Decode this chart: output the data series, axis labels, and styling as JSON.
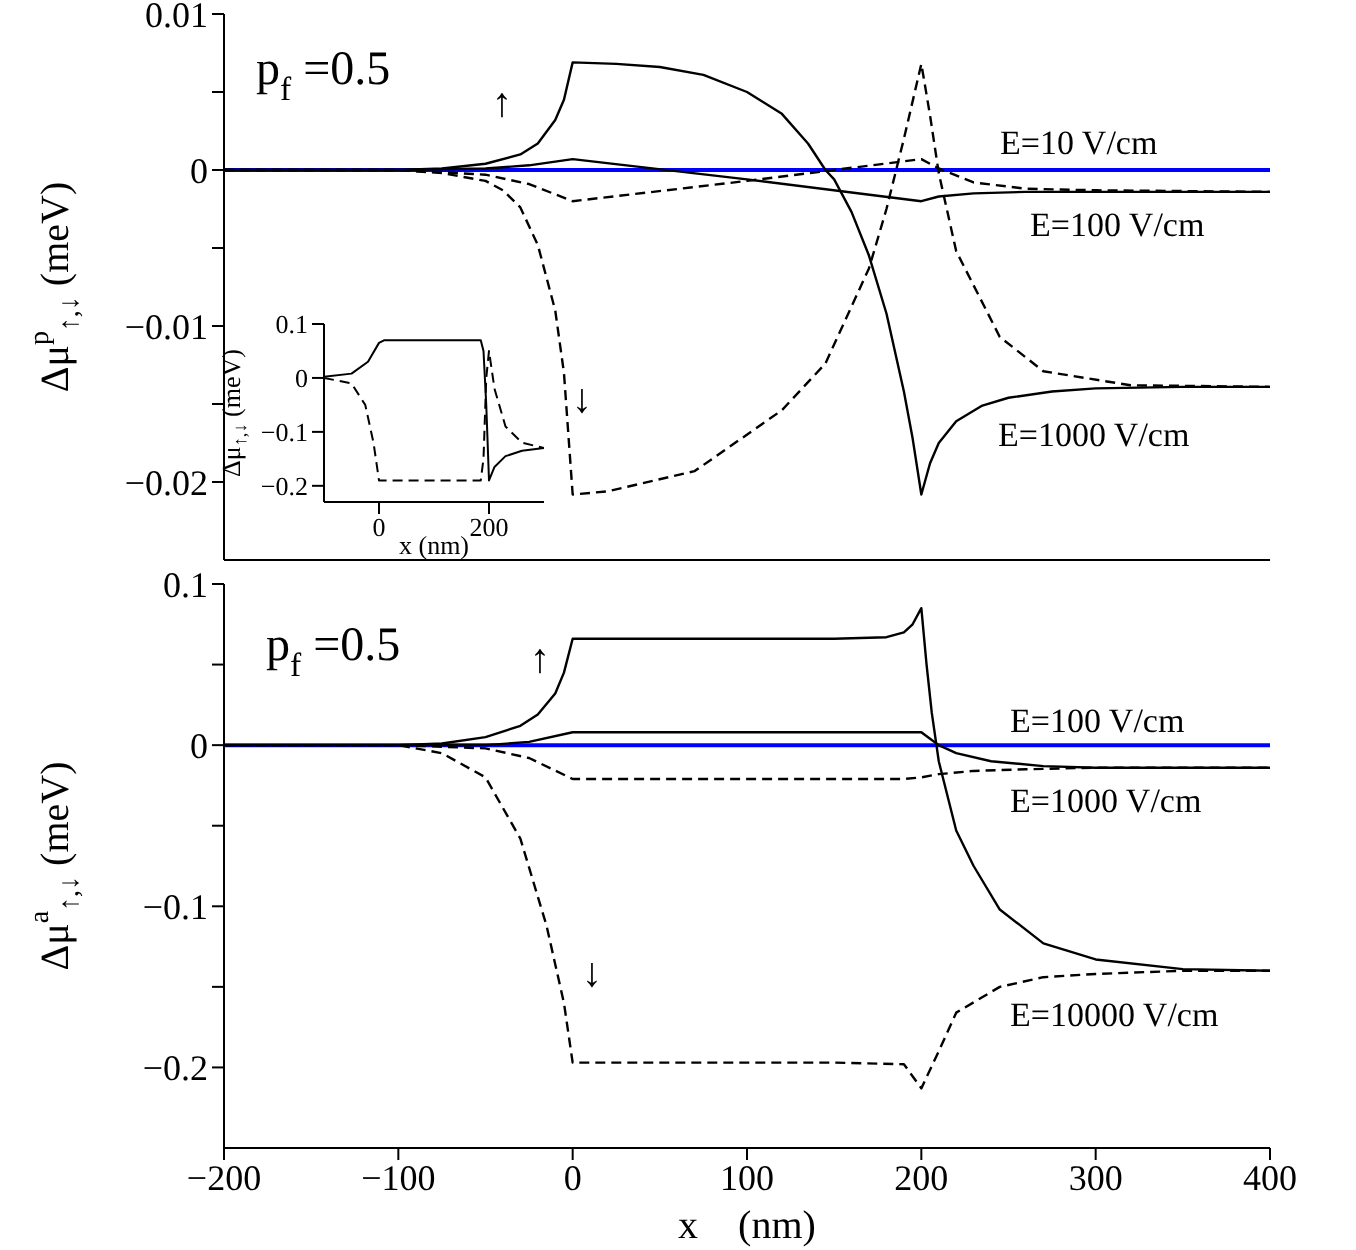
{
  "chart_data": [
    {
      "type": "line",
      "ylabel": "Δμ$^{p}$$_{↑,↓}$ (meV)",
      "xlim": [
        -200,
        400
      ],
      "xticks": [
        -200,
        -100,
        0,
        100,
        200,
        300,
        400
      ],
      "ylim": [
        -0.025,
        0.01
      ],
      "yticks": [
        0.01,
        {
          "value": 0.005,
          "label": null
        },
        0,
        {
          "value": -0.005,
          "label": null
        },
        {
          "value": -0.01,
          "label": "−0.01"
        },
        {
          "value": -0.015,
          "label": null
        },
        {
          "value": -0.02,
          "label": "−0.02"
        }
      ],
      "tick_labels": "y",
      "ref_lines": [
        {
          "axis": "y",
          "value": 0,
          "color": "#0000ff"
        }
      ],
      "annotations": [
        "p$_{f}$ =0.5",
        "↑",
        "↓",
        "E=10 V/cm",
        "E=100 V/cm",
        "E=1000 V/cm"
      ],
      "series": [
        {
          "color": "#000000",
          "line_style": "solid",
          "x": [
            -200,
            -100,
            -75,
            -50,
            -30,
            -20,
            -10,
            -5,
            0,
            25,
            50,
            75,
            100,
            120,
            135,
            145,
            150,
            160,
            170,
            180,
            190,
            195,
            200,
            205,
            210,
            220,
            235,
            250,
            275,
            300,
            350,
            400
          ],
          "values": [
            0,
            0,
            0.0001,
            0.0004,
            0.001,
            0.0017,
            0.0032,
            0.0045,
            0.0069,
            0.0068,
            0.0066,
            0.0061,
            0.005,
            0.0036,
            0.0017,
            0,
            -0.0006,
            -0.0027,
            -0.0055,
            -0.0092,
            -0.0142,
            -0.0172,
            -0.0208,
            -0.0188,
            -0.0175,
            -0.0161,
            -0.0151,
            -0.0146,
            -0.0142,
            -0.014,
            -0.0139,
            -0.0139
          ]
        },
        {
          "color": "#000000",
          "line_style": "dashed",
          "x": [
            -200,
            -100,
            -75,
            -50,
            -40,
            -30,
            -20,
            -10,
            -5,
            0,
            20,
            70,
            120,
            145,
            170,
            180,
            190,
            195,
            200,
            205,
            210,
            220,
            245,
            270,
            320,
            400
          ],
          "values": [
            0,
            0,
            -0.0002,
            -0.0007,
            -0.0013,
            -0.0024,
            -0.0048,
            -0.009,
            -0.013,
            -0.0208,
            -0.0206,
            -0.0193,
            -0.0154,
            -0.0124,
            -0.0063,
            -0.0025,
            0.002,
            0.0044,
            0.0068,
            0.0035,
            -0.0002,
            -0.0052,
            -0.0107,
            -0.0129,
            -0.0138,
            -0.0139
          ]
        },
        {
          "color": "#000000",
          "line_style": "solid",
          "x": [
            -200,
            -100,
            -50,
            -25,
            0,
            100,
            200,
            210,
            230,
            260,
            300,
            400
          ],
          "values": [
            0,
            0,
            0.0001,
            0.0003,
            0.0007,
            -0.0006,
            -0.002,
            -0.0017,
            -0.0015,
            -0.0014,
            -0.0014,
            -0.0014
          ]
        },
        {
          "color": "#000000",
          "line_style": "dashed",
          "x": [
            -200,
            -100,
            -50,
            -25,
            0,
            100,
            200,
            210,
            230,
            260,
            300,
            400
          ],
          "values": [
            0,
            0,
            -0.0003,
            -0.0009,
            -0.002,
            -0.0007,
            0.0007,
            0.0001,
            -0.0008,
            -0.0012,
            -0.0013,
            -0.0014
          ]
        }
      ]
    },
    {
      "type": "line",
      "xlabel": "x (nm)",
      "ylabel": "Δμ$_{↑,↓}$ (meV)",
      "xlim": [
        -100,
        300
      ],
      "xticks": [
        0,
        200
      ],
      "ylim": [
        -0.23,
        0.1
      ],
      "yticks": [
        0.1,
        0,
        {
          "value": -0.1,
          "label": "−0.1"
        },
        {
          "value": -0.2,
          "label": "−0.2"
        }
      ],
      "series": [
        {
          "color": "#000000",
          "line_style": "solid",
          "x": [
            -100,
            -50,
            -20,
            0,
            10,
            100,
            185,
            190,
            195,
            200,
            210,
            230,
            260,
            300
          ],
          "values": [
            0.002,
            0.008,
            0.03,
            0.065,
            0.07,
            0.07,
            0.07,
            0.05,
            -0.05,
            -0.19,
            -0.165,
            -0.145,
            -0.135,
            -0.13
          ]
        },
        {
          "color": "#000000",
          "line_style": "dashed",
          "x": [
            -100,
            -50,
            -25,
            -10,
            0,
            100,
            185,
            190,
            195,
            200,
            210,
            230,
            260,
            300
          ],
          "values": [
            0,
            -0.01,
            -0.05,
            -0.12,
            -0.19,
            -0.19,
            -0.19,
            -0.15,
            0,
            0.05,
            -0.02,
            -0.09,
            -0.12,
            -0.13
          ]
        }
      ]
    },
    {
      "type": "line",
      "xlabel": "x    (nm)",
      "ylabel": "Δμ$^{a}$$_{↑,↓}$ (meV)",
      "xlim": [
        -200,
        400
      ],
      "xticks": [
        {
          "value": -200,
          "label": "−200"
        },
        {
          "value": -100,
          "label": "−100"
        },
        0,
        100,
        200,
        300,
        400
      ],
      "ylim": [
        -0.25,
        0.1
      ],
      "yticks": [
        0.1,
        {
          "value": 0.05,
          "label": null
        },
        0,
        {
          "value": -0.05,
          "label": null
        },
        {
          "value": -0.1,
          "label": "−0.1"
        },
        {
          "value": -0.15,
          "label": null
        },
        {
          "value": -0.2,
          "label": "−0.2"
        }
      ],
      "ref_lines": [
        {
          "axis": "y",
          "value": 0,
          "color": "#0000ff"
        }
      ],
      "annotations": [
        "p$_{f}$ =0.5",
        "↑",
        "↓",
        "E=100 V/cm",
        "E=1000 V/cm",
        "E=10000 V/cm"
      ],
      "series": [
        {
          "color": "#000000",
          "line_style": "solid",
          "x": [
            -200,
            -100,
            -75,
            -50,
            -30,
            -20,
            -10,
            -5,
            0,
            50,
            100,
            150,
            180,
            190,
            195,
            200,
            203,
            206,
            210,
            220,
            230,
            245,
            270,
            300,
            350,
            400
          ],
          "values": [
            0,
            0,
            0.001,
            0.005,
            0.012,
            0.019,
            0.032,
            0.045,
            0.066,
            0.066,
            0.066,
            0.066,
            0.067,
            0.07,
            0.075,
            0.085,
            0.05,
            0.02,
            -0.01,
            -0.053,
            -0.075,
            -0.102,
            -0.123,
            -0.133,
            -0.139,
            -0.14
          ]
        },
        {
          "color": "#000000",
          "line_style": "dashed",
          "x": [
            -200,
            -100,
            -75,
            -50,
            -30,
            -15,
            -5,
            0,
            50,
            100,
            150,
            190,
            200,
            210,
            220,
            245,
            270,
            300,
            350,
            400
          ],
          "values": [
            0,
            0,
            -0.005,
            -0.02,
            -0.058,
            -0.112,
            -0.16,
            -0.197,
            -0.197,
            -0.197,
            -0.197,
            -0.198,
            -0.213,
            -0.19,
            -0.166,
            -0.15,
            -0.144,
            -0.142,
            -0.14,
            -0.14
          ]
        },
        {
          "color": "#000000",
          "line_style": "solid",
          "x": [
            -200,
            -100,
            -50,
            -25,
            0,
            100,
            200,
            205,
            210,
            220,
            240,
            270,
            300,
            400
          ],
          "values": [
            0,
            0,
            0,
            0.002,
            0.008,
            0.008,
            0.008,
            0.004,
            0,
            -0.005,
            -0.01,
            -0.013,
            -0.014,
            -0.014
          ]
        },
        {
          "color": "#000000",
          "line_style": "dashed",
          "x": [
            -200,
            -100,
            -50,
            -25,
            0,
            100,
            190,
            200,
            210,
            230,
            260,
            300,
            400
          ],
          "values": [
            0,
            0,
            -0.002,
            -0.008,
            -0.021,
            -0.021,
            -0.021,
            -0.02,
            -0.018,
            -0.016,
            -0.015,
            -0.014,
            -0.014
          ]
        }
      ]
    }
  ]
}
